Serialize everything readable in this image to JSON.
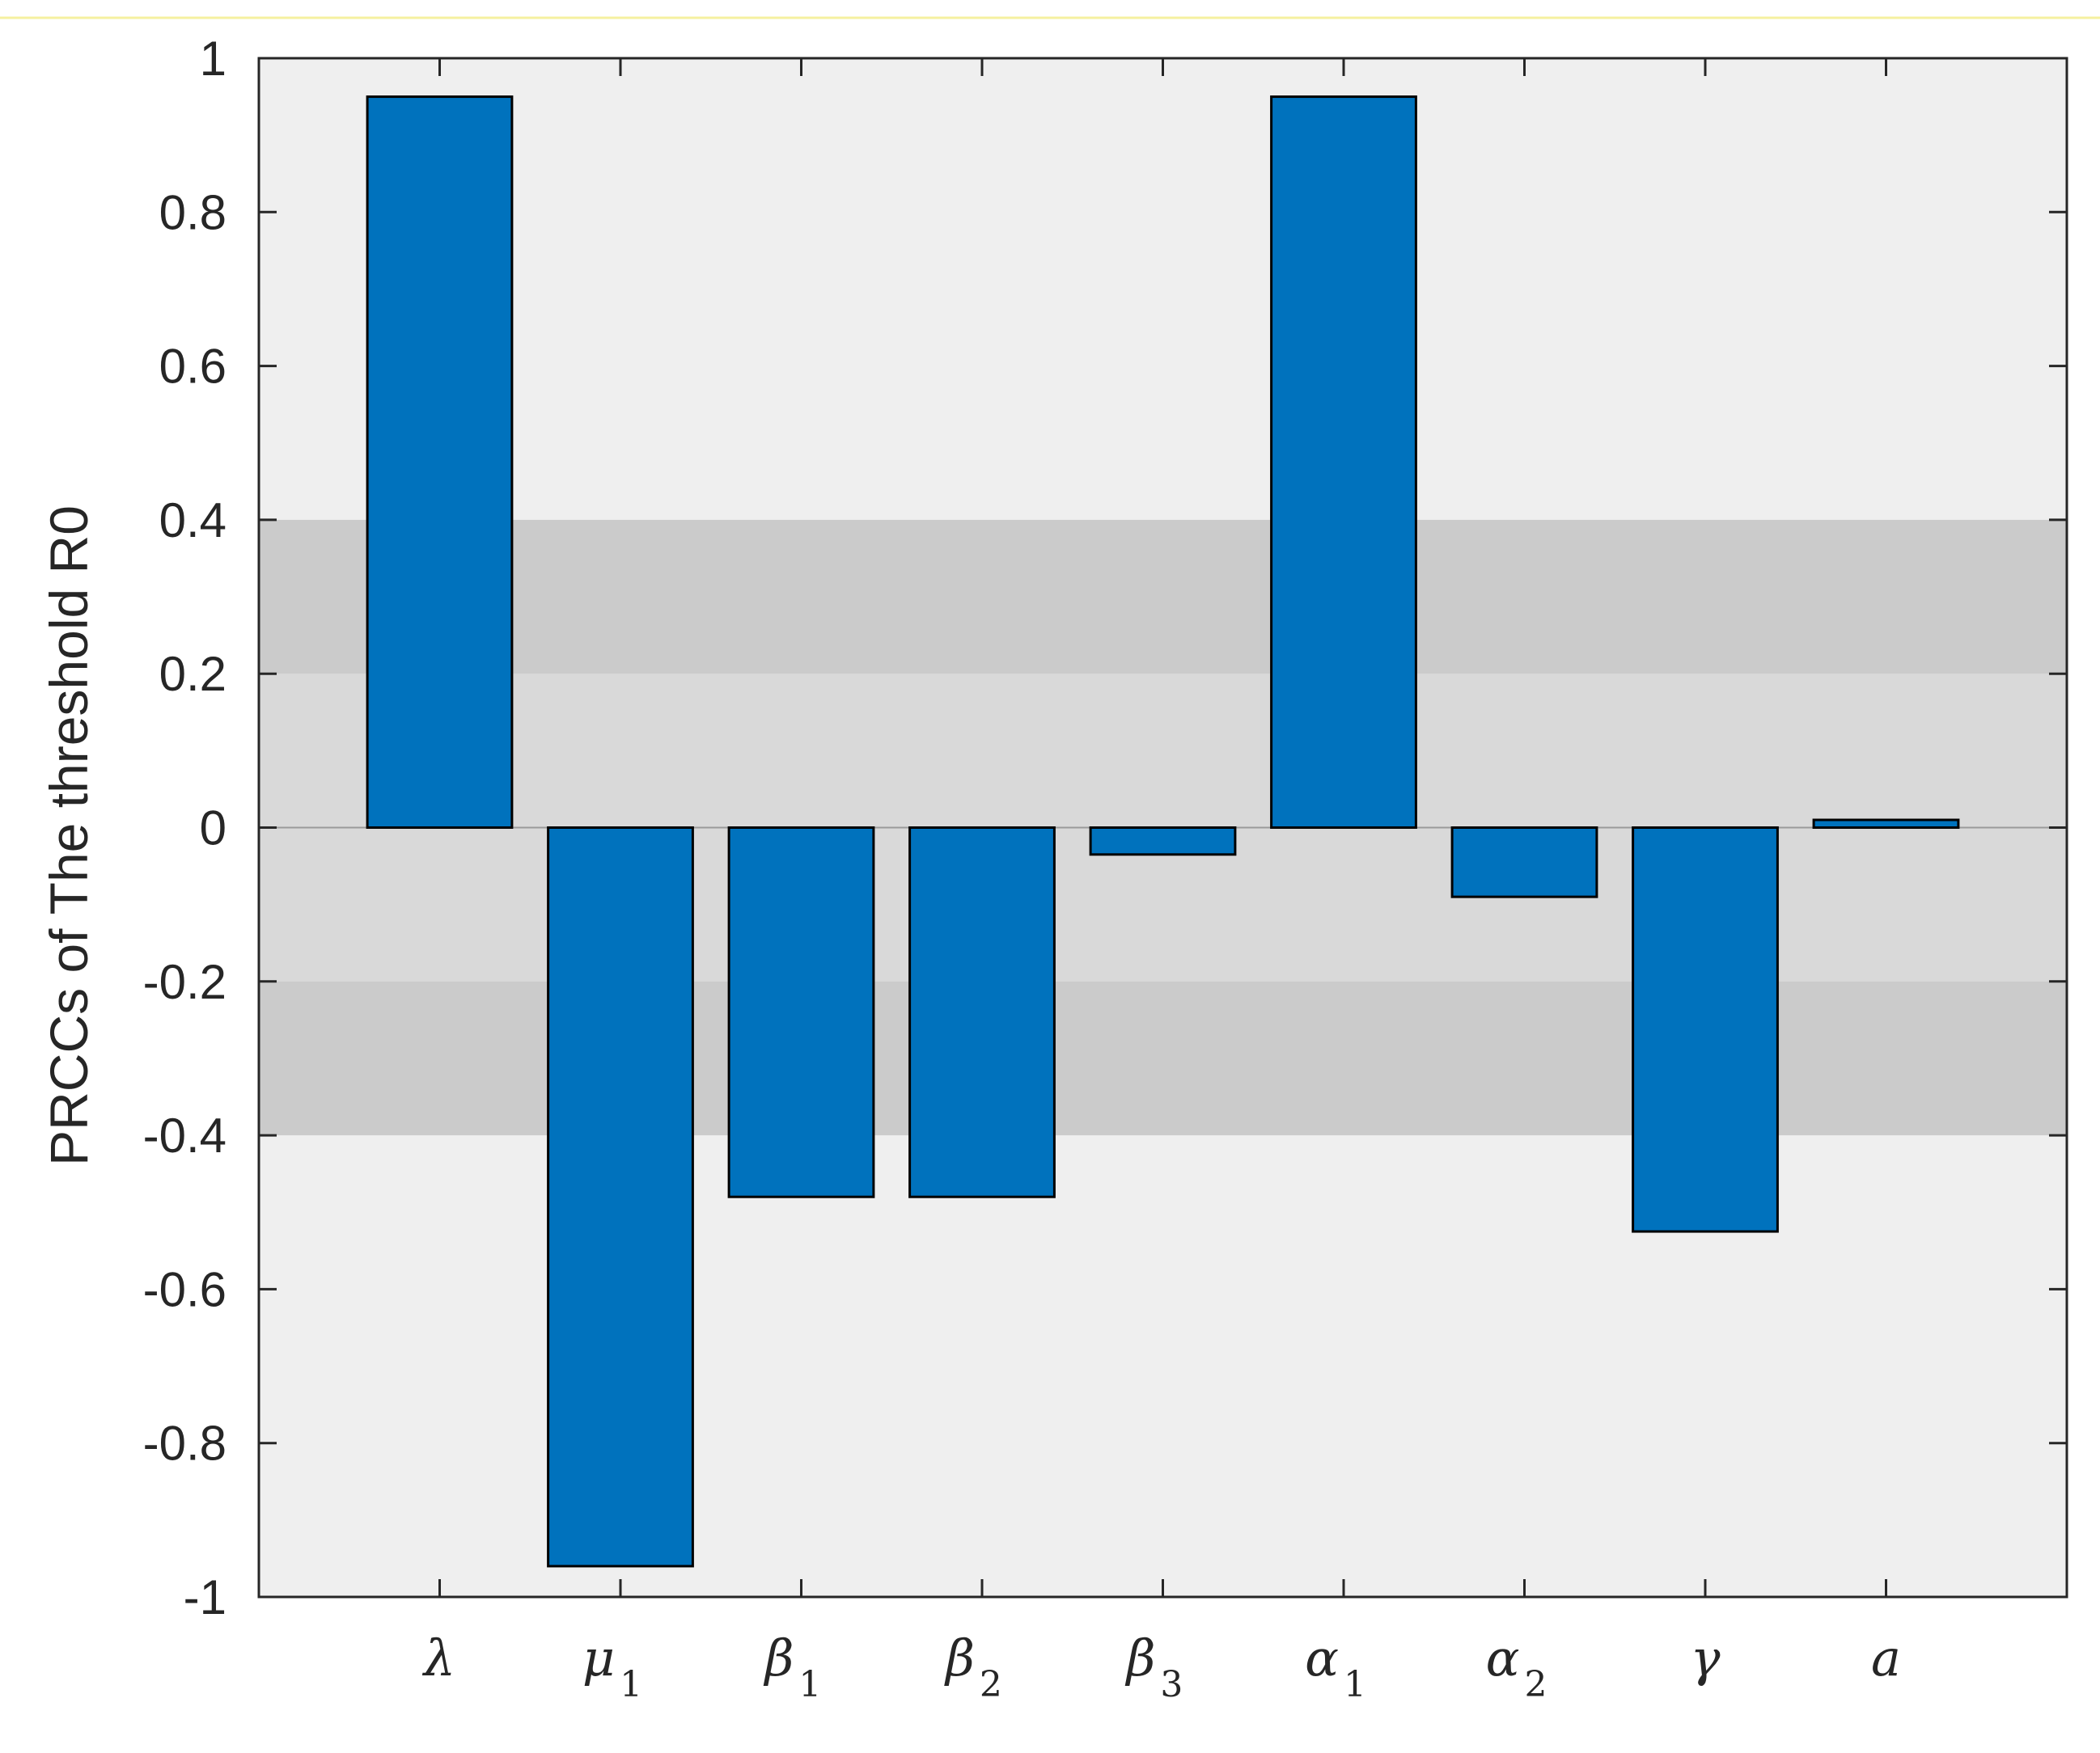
{
  "chart_data": {
    "type": "bar",
    "categories": [
      {
        "label": "λ",
        "sub": ""
      },
      {
        "label": "μ",
        "sub": "1"
      },
      {
        "label": "β",
        "sub": "1"
      },
      {
        "label": "β",
        "sub": "2"
      },
      {
        "label": "β",
        "sub": "3"
      },
      {
        "label": "α",
        "sub": "1"
      },
      {
        "label": "α",
        "sub": "2"
      },
      {
        "label": "γ",
        "sub": ""
      },
      {
        "label": "a",
        "sub": ""
      }
    ],
    "values": [
      0.95,
      -0.96,
      -0.48,
      -0.48,
      -0.035,
      0.95,
      -0.09,
      -0.525,
      0.01
    ],
    "ylabel": "PRCCs of The threshold R0",
    "xlabel": "",
    "ylim": [
      -1,
      1
    ],
    "yticks": [
      1,
      0.8,
      0.6,
      0.4,
      0.2,
      0,
      -0.2,
      -0.4,
      -0.6,
      -0.8,
      -1
    ],
    "ytick_labels": [
      "1",
      "0.8",
      "0.6",
      "0.4",
      "0.2",
      "0",
      "-0.2",
      "-0.4",
      "-0.6",
      "-0.8",
      "-1"
    ],
    "shaded_bands": [
      {
        "from": -0.2,
        "to": 0.2,
        "color": "#d9d9d9"
      },
      {
        "from": 0.2,
        "to": 0.4,
        "color": "#cbcbcb"
      },
      {
        "from": -0.4,
        "to": -0.2,
        "color": "#cbcbcb"
      }
    ],
    "colors": {
      "bar": "#0072bd",
      "background": "#efefef",
      "axis": "#262626"
    },
    "grid": false
  }
}
